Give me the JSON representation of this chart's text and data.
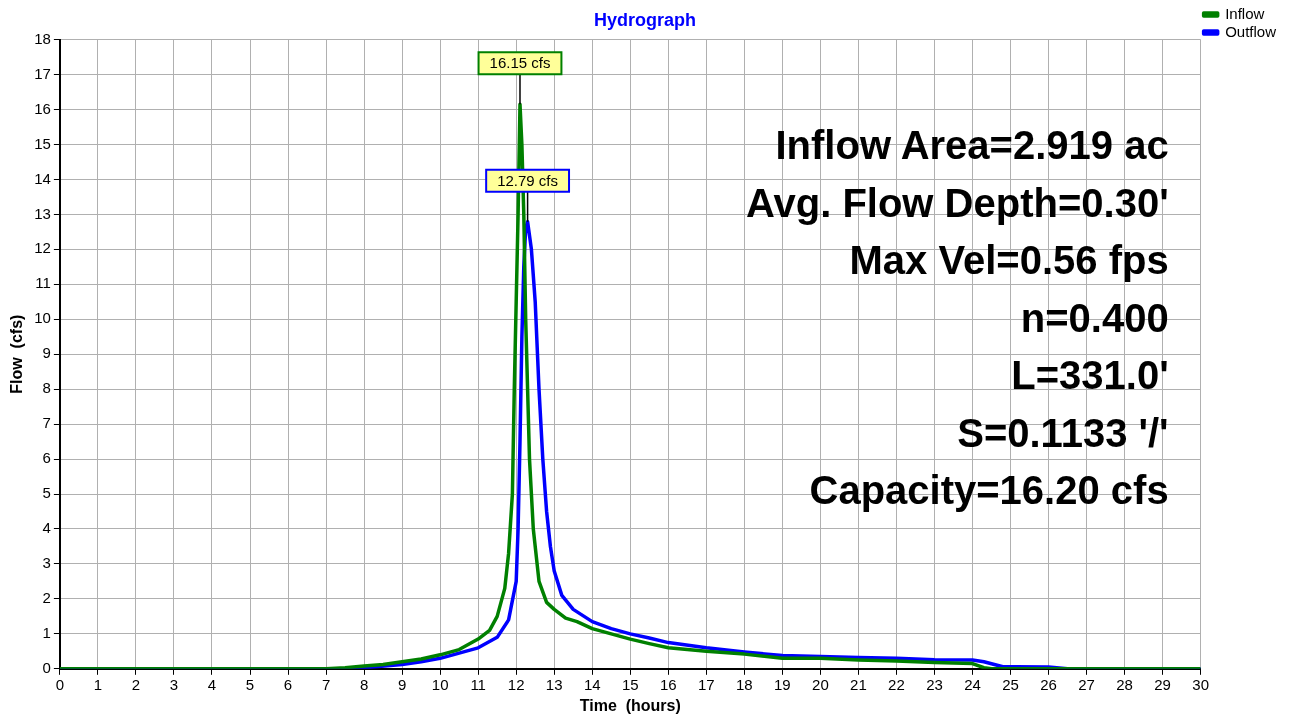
{
  "chart_data": {
    "type": "line",
    "title": "Hydrograph",
    "xlabel": "Time  (hours)",
    "ylabel": "Flow  (cfs)",
    "xlim": [
      0,
      30
    ],
    "xticks": [
      0,
      1,
      2,
      3,
      4,
      5,
      6,
      7,
      8,
      9,
      10,
      11,
      12,
      13,
      14,
      15,
      16,
      17,
      18,
      19,
      20,
      21,
      22,
      23,
      24,
      25,
      26,
      27,
      28,
      29,
      30
    ],
    "ylim": [
      0,
      18
    ],
    "yticks": [
      0,
      1,
      2,
      3,
      4,
      5,
      6,
      7,
      8,
      9,
      10,
      11,
      12,
      13,
      14,
      15,
      16,
      17,
      18
    ],
    "grid": true,
    "legend": "top right",
    "marker": "none",
    "line_style": "solid",
    "series": [
      {
        "name": "Inflow",
        "color": "#008000",
        "x": [
          0,
          7,
          7.5,
          8,
          8.5,
          9,
          9.5,
          10,
          10.5,
          11,
          11.3,
          11.5,
          11.7,
          11.8,
          11.9,
          11.95,
          12.0,
          12.05,
          12.1,
          12.15,
          12.2,
          12.25,
          12.35,
          12.45,
          12.6,
          12.8,
          13,
          13.3,
          13.6,
          14,
          14.5,
          15,
          15.5,
          16,
          16.5,
          17,
          18,
          19,
          20,
          21,
          22,
          23,
          24,
          24.3,
          24.5,
          30
        ],
        "values": [
          0,
          0,
          0.03,
          0.08,
          0.12,
          0.2,
          0.28,
          0.4,
          0.55,
          0.85,
          1.1,
          1.5,
          2.3,
          3.3,
          5,
          8,
          10.5,
          13,
          16.15,
          15,
          13,
          10,
          6,
          4,
          2.5,
          1.9,
          1.7,
          1.45,
          1.35,
          1.15,
          1.0,
          0.85,
          0.72,
          0.6,
          0.55,
          0.5,
          0.42,
          0.3,
          0.3,
          0.25,
          0.22,
          0.18,
          0.15,
          0.03,
          0,
          0
        ]
      },
      {
        "name": "Outflow",
        "color": "#0000ff",
        "x": [
          0,
          7.5,
          8,
          9,
          9.5,
          10,
          10.5,
          11,
          11.5,
          11.8,
          12,
          12.05,
          12.1,
          12.15,
          12.2,
          12.25,
          12.3,
          12.4,
          12.5,
          12.6,
          12.7,
          12.8,
          12.9,
          13,
          13.2,
          13.5,
          14,
          14.5,
          15,
          15.5,
          16,
          17,
          18,
          19,
          20,
          21,
          22,
          23,
          24,
          24.3,
          24.8,
          26,
          26.5,
          30
        ],
        "values": [
          0,
          0,
          0.03,
          0.12,
          0.2,
          0.3,
          0.45,
          0.6,
          0.9,
          1.4,
          2.5,
          4,
          6.5,
          9.5,
          11.5,
          12.6,
          12.79,
          12,
          10.5,
          8,
          6,
          4.5,
          3.5,
          2.8,
          2.1,
          1.7,
          1.35,
          1.15,
          1.0,
          0.88,
          0.75,
          0.6,
          0.48,
          0.38,
          0.35,
          0.32,
          0.3,
          0.26,
          0.25,
          0.2,
          0.06,
          0.05,
          0,
          0
        ]
      }
    ],
    "annotations": [
      {
        "text": "16.15 cfs",
        "x": 12.1,
        "y": 16.15
      },
      {
        "text": "12.79 cfs",
        "x": 12.3,
        "y": 12.79
      },
      "Inflow Area=2.919 ac",
      "Avg. Flow Depth=0.30'",
      "Max Vel=0.56 fps",
      "n=0.400",
      "L=331.0'",
      "S=0.1133 '/'",
      "Capacity=16.20 cfs"
    ]
  }
}
